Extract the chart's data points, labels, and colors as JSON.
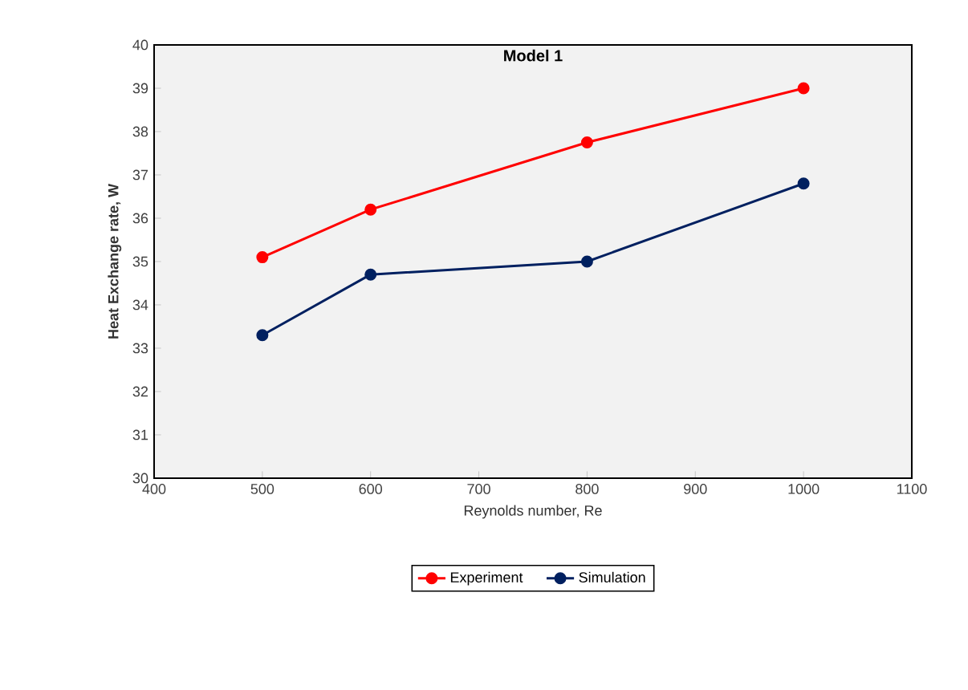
{
  "chart_data": {
    "type": "line",
    "title": "Model 1",
    "xlabel": "Reynolds number, Re",
    "ylabel": "Heat Exchange rate, W",
    "x": [
      500,
      600,
      800,
      1000
    ],
    "series": [
      {
        "name": "Experiment",
        "color": "#ff0000",
        "values": [
          35.1,
          36.2,
          37.75,
          39.0
        ]
      },
      {
        "name": "Simulation",
        "color": "#002060",
        "values": [
          33.3,
          34.7,
          35.0,
          36.8
        ]
      }
    ],
    "xlim": [
      400,
      1100
    ],
    "xticks": [
      400,
      500,
      600,
      700,
      800,
      900,
      1000,
      1100
    ],
    "ylim": [
      30,
      40
    ],
    "yticks": [
      30,
      31,
      32,
      33,
      34,
      35,
      36,
      37,
      38,
      39,
      40
    ],
    "marker": "circle",
    "line_style": "solid",
    "legend": "bottom"
  }
}
